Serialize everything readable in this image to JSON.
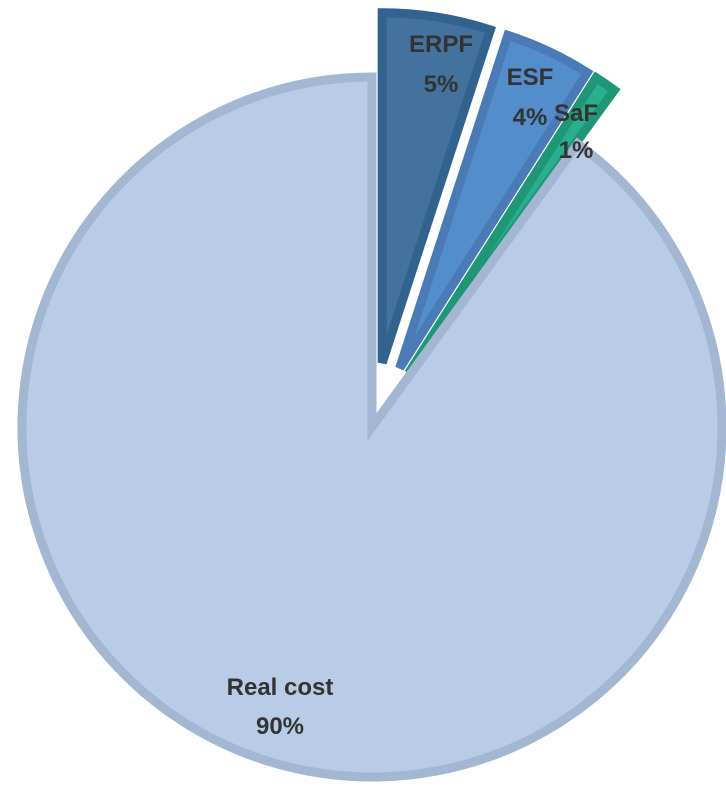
{
  "chart_data": {
    "type": "pie",
    "title": "",
    "slices": [
      {
        "label": "ERPF",
        "value": 5,
        "display_value": "5%",
        "color": "#44729f",
        "stroke": "#32628e",
        "exploded": true
      },
      {
        "label": "ESF",
        "value": 4,
        "display_value": "4%",
        "color": "#548dcc",
        "stroke": "#4a7bb7",
        "exploded": true
      },
      {
        "label": "SaF",
        "value": 1,
        "display_value": "1%",
        "color": "#27b08e",
        "stroke": "#1f9676",
        "exploded": true
      },
      {
        "label": "Real cost",
        "value": 90,
        "display_value": "90%",
        "color": "#b8cce7",
        "stroke": "#a3b6d2",
        "exploded": false
      }
    ],
    "start_angle": "12 o'clock",
    "direction": "clockwise"
  }
}
